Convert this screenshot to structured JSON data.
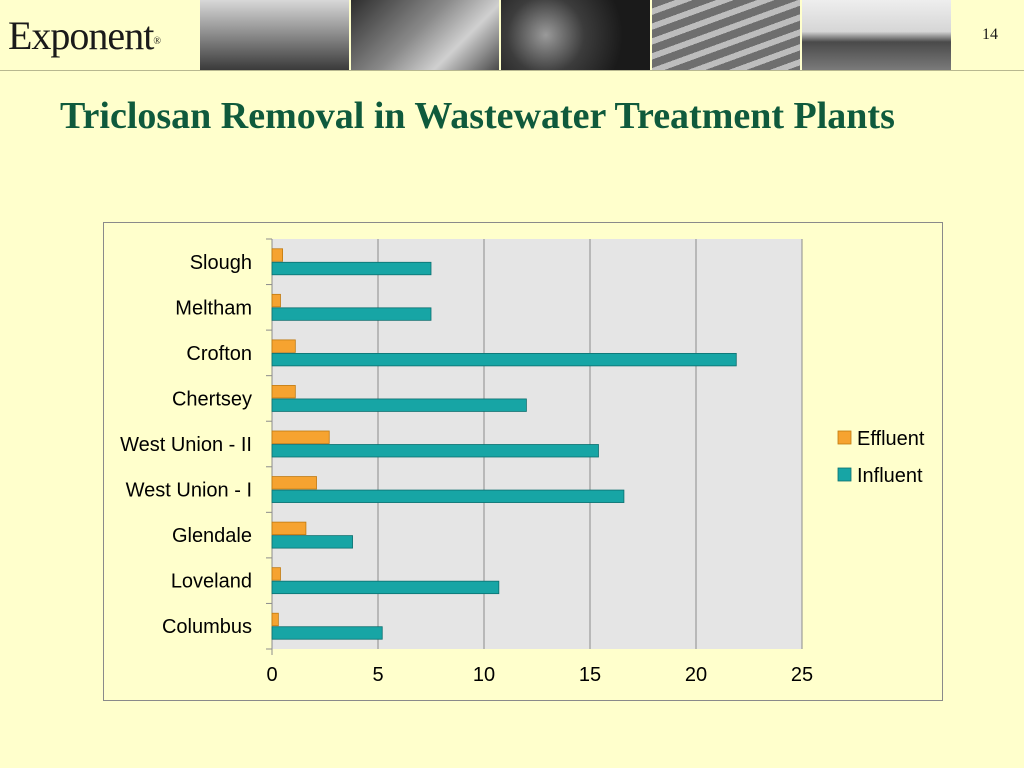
{
  "header": {
    "logo_text": "Exponent",
    "page_number": "14",
    "photos": [
      "industrial-plant-photo",
      "car-crash-dummy-photo",
      "strawberries-photo",
      "building-photo",
      "lng-tanker-ship-photo"
    ]
  },
  "slide": {
    "title": "Triclosan Removal in Wastewater Treatment Plants"
  },
  "colors": {
    "background": "#ffffcc",
    "title": "#0f5a3c",
    "plot_area": "#e5e5e5",
    "effluent": "#f6a330",
    "influent": "#17a5a5"
  },
  "chart_data": {
    "type": "bar",
    "orientation": "horizontal",
    "categories": [
      "Slough",
      "Meltham",
      "Crofton",
      "Chertsey",
      "West Union - II",
      "West Union - I",
      "Glendale",
      "Loveland",
      "Columbus"
    ],
    "series": [
      {
        "name": "Effluent",
        "values": [
          0.5,
          0.4,
          1.1,
          1.1,
          2.7,
          2.1,
          1.6,
          0.4,
          0.3
        ]
      },
      {
        "name": "Influent",
        "values": [
          7.5,
          7.5,
          21.9,
          12.0,
          15.4,
          16.6,
          3.8,
          10.7,
          5.2
        ]
      }
    ],
    "xlim": [
      0,
      25
    ],
    "ticks": [
      "0",
      "5",
      "10",
      "15",
      "20",
      "25"
    ],
    "tick_values": [
      0,
      5,
      10,
      15,
      20,
      25
    ],
    "grid": true,
    "legend_position": "right"
  }
}
